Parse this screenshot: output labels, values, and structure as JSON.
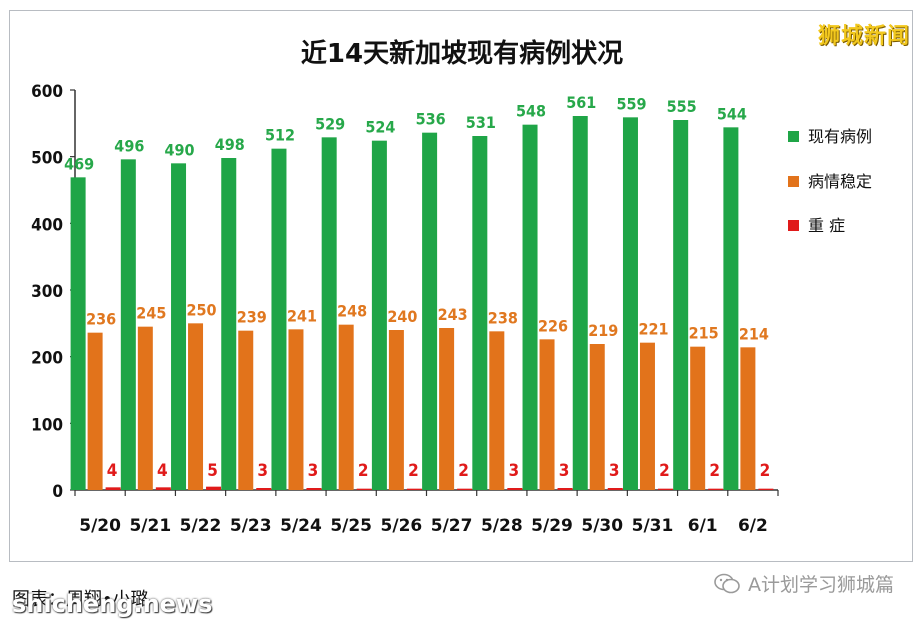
{
  "brand": "狮城新闻",
  "footer": {
    "credit": "图表：周翔•小璐",
    "site": "shicheng.news",
    "wechat": "A计划学习狮城篇"
  },
  "colors": {
    "green": "#1fa547",
    "orange": "#e2731b",
    "red": "#e01a1a",
    "green_label": "#27a84a",
    "orange_label": "#e07820",
    "red_label": "#e01a1a"
  },
  "chart_data": {
    "type": "bar",
    "title": "近14天新加坡现有病例状况",
    "categories": [
      "5/20",
      "5/21",
      "5/22",
      "5/23",
      "5/24",
      "5/25",
      "5/26",
      "5/27",
      "5/28",
      "5/29",
      "5/30",
      "5/31",
      "6/1",
      "6/2"
    ],
    "series": [
      {
        "name": "现有病例",
        "color": "green",
        "values": [
          469,
          496,
          490,
          498,
          512,
          529,
          524,
          536,
          531,
          548,
          561,
          559,
          555,
          544
        ]
      },
      {
        "name": "病情稳定",
        "color": "orange",
        "values": [
          236,
          245,
          250,
          239,
          241,
          248,
          240,
          243,
          238,
          226,
          219,
          221,
          215,
          214
        ]
      },
      {
        "name": "重 症",
        "color": "red",
        "values": [
          4,
          4,
          5,
          3,
          3,
          2,
          2,
          2,
          3,
          3,
          3,
          2,
          2,
          2
        ]
      }
    ],
    "ylim": [
      0,
      600
    ],
    "yticks": [
      0,
      100,
      200,
      300,
      400,
      500,
      600
    ],
    "legend": "right",
    "grid": false
  }
}
